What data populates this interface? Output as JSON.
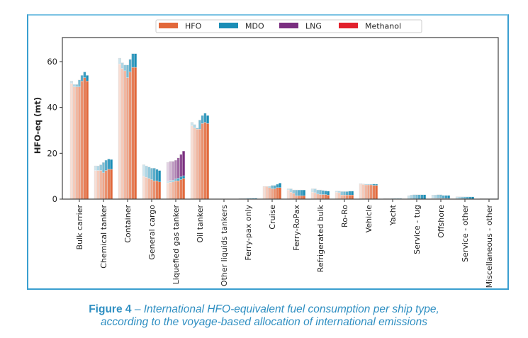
{
  "chart_data": {
    "type": "bar",
    "stacked": true,
    "grouped_by_year": true,
    "ylabel": "HFO-eq (mt)",
    "xlabel": "",
    "ylim": [
      0,
      70.5
    ],
    "yticks": [
      0,
      20,
      40,
      60
    ],
    "legend": {
      "placement": "top-center",
      "entries": [
        "HFO",
        "MDO",
        "LNG",
        "Methanol"
      ]
    },
    "colors": {
      "HFO": "#e2683a",
      "MDO": "#1a8db6",
      "LNG": "#7a2e80",
      "Methanol": "#e2202c"
    },
    "years_per_group": 7,
    "categories": [
      "Bulk carrier",
      "Chemical tanker",
      "Container",
      "General cargo",
      "Liquefied gas tanker",
      "Oil tanker",
      "Other liquids tankers",
      "Ferry-pax only",
      "Cruise",
      "Ferry-RoPax",
      "Refrigerated bulk",
      "Ro-Ro",
      "Vehicle",
      "Yacht",
      "Service - tug",
      "Offshore",
      "Service - other",
      "Miscellaneous - other"
    ],
    "series": [
      {
        "name": "HFO",
        "values": [
          [
            50.5,
            49,
            49,
            49,
            51.5,
            53,
            51.5
          ],
          [
            12.5,
            12.5,
            12.5,
            11.5,
            12.5,
            13,
            13
          ],
          [
            59,
            57,
            56,
            53,
            55.5,
            57.5,
            57.5
          ],
          [
            10,
            9.5,
            9,
            8.5,
            8,
            8,
            7.5
          ],
          [
            7,
            7.3,
            7.5,
            8,
            8,
            8.5,
            9
          ],
          [
            32,
            31,
            30.5,
            30.5,
            33,
            33.5,
            33
          ],
          [
            0.05,
            0.05,
            0.05,
            0.05,
            0.05,
            0.05,
            0.05
          ],
          [
            0,
            0,
            0,
            0,
            0,
            0,
            0
          ],
          [
            5.5,
            5.5,
            5,
            4.5,
            4.5,
            5,
            5
          ],
          [
            4,
            3,
            2.5,
            1.5,
            1.5,
            1.5,
            1.5
          ],
          [
            3,
            2.8,
            2.2,
            2,
            2,
            2,
            1.8
          ],
          [
            3,
            2.8,
            1.8,
            1.8,
            1.8,
            1.8,
            1.8
          ],
          [
            6.6,
            6.4,
            6.2,
            6.2,
            6.2,
            6,
            6
          ],
          [
            0,
            0,
            0,
            0,
            0,
            0,
            0
          ],
          [
            0.1,
            0.1,
            0.1,
            0.1,
            0.1,
            0.1,
            0.1
          ],
          [
            0.3,
            0.3,
            0.3,
            0.3,
            0.3,
            0.3,
            0.3
          ],
          [
            0.1,
            0.1,
            0.1,
            0.1,
            0.1,
            0.1,
            0.1
          ],
          [
            0.1,
            0.1,
            0.1,
            0.1,
            0.1,
            0.1,
            0.1
          ]
        ]
      },
      {
        "name": "MDO",
        "values": [
          [
            1,
            1,
            1,
            3,
            2.5,
            2.5,
            2.5
          ],
          [
            2,
            2,
            2.5,
            4.5,
            4.5,
            4.5,
            4.3
          ],
          [
            2.5,
            2.5,
            2.5,
            5.5,
            5.5,
            6,
            6
          ],
          [
            5,
            5,
            5,
            5,
            5.5,
            5,
            5
          ],
          [
            0.8,
            0.8,
            0.8,
            0.8,
            1.2,
            1.3,
            1.2
          ],
          [
            1.5,
            1.5,
            0.5,
            4,
            3.5,
            4,
            3.5
          ],
          [
            0.05,
            0.05,
            0.05,
            0.05,
            0.05,
            0.05,
            0.05
          ],
          [
            0.3,
            0.3,
            0.3,
            0.4,
            0.4,
            0.4,
            0.4
          ],
          [
            0,
            0,
            0.5,
            1.5,
            1.5,
            1.5,
            2
          ],
          [
            0.5,
            1.5,
            1.5,
            2.5,
            2.5,
            2.5,
            2.5
          ],
          [
            1.5,
            1.7,
            1.8,
            2,
            1.8,
            1.6,
            1.7
          ],
          [
            0.5,
            0.7,
            1.5,
            1.5,
            1.5,
            1.7,
            1.7
          ],
          [
            0.2,
            0.2,
            0.3,
            0.3,
            0.3,
            0.6,
            0.5
          ],
          [
            0.2,
            0.2,
            0.2,
            0.3,
            0.3,
            0.3,
            0.3
          ],
          [
            1.4,
            1.7,
            1.8,
            1.8,
            1.8,
            1.8,
            1.8
          ],
          [
            1.5,
            1.5,
            1.6,
            1.6,
            1.3,
            1.3,
            1.3
          ],
          [
            0.9,
            0.9,
            0.9,
            0.9,
            0.9,
            0.9,
            0.9
          ],
          [
            0.1,
            0.1,
            0.1,
            0.1,
            0.1,
            0.1,
            0.1
          ]
        ]
      },
      {
        "name": "LNG",
        "values": [
          [
            0,
            0,
            0,
            0,
            0,
            0,
            0
          ],
          [
            0,
            0,
            0,
            0,
            0,
            0,
            0
          ],
          [
            0,
            0,
            0,
            0,
            0,
            0,
            0
          ],
          [
            0,
            0,
            0,
            0,
            0,
            0,
            0
          ],
          [
            8.2,
            8.4,
            8.2,
            8.2,
            8.8,
            9.7,
            10.8
          ],
          [
            0,
            0,
            0,
            0,
            0,
            0,
            0
          ],
          [
            0,
            0,
            0,
            0,
            0,
            0,
            0
          ],
          [
            0,
            0,
            0,
            0,
            0,
            0,
            0
          ],
          [
            0,
            0,
            0,
            0,
            0,
            0,
            0
          ],
          [
            0,
            0,
            0,
            0,
            0,
            0,
            0
          ],
          [
            0,
            0,
            0,
            0,
            0,
            0,
            0
          ],
          [
            0,
            0,
            0,
            0,
            0,
            0,
            0
          ],
          [
            0,
            0,
            0,
            0,
            0,
            0,
            0
          ],
          [
            0,
            0,
            0,
            0,
            0,
            0,
            0
          ],
          [
            0,
            0,
            0,
            0,
            0,
            0,
            0
          ],
          [
            0,
            0,
            0,
            0,
            0,
            0,
            0
          ],
          [
            0,
            0,
            0,
            0,
            0,
            0,
            0
          ],
          [
            0,
            0,
            0,
            0,
            0,
            0,
            0
          ]
        ]
      },
      {
        "name": "Methanol",
        "values": [
          [
            0,
            0,
            0,
            0,
            0,
            0,
            0
          ],
          [
            0,
            0,
            0,
            0,
            0,
            0,
            0
          ],
          [
            0,
            0,
            0,
            0,
            0,
            0,
            0
          ],
          [
            0,
            0,
            0,
            0,
            0,
            0,
            0
          ],
          [
            0,
            0,
            0,
            0,
            0,
            0,
            0
          ],
          [
            0,
            0,
            0,
            0,
            0,
            0,
            0
          ],
          [
            0,
            0,
            0,
            0,
            0,
            0,
            0
          ],
          [
            0,
            0,
            0,
            0,
            0,
            0,
            0
          ],
          [
            0,
            0,
            0,
            0,
            0,
            0,
            0
          ],
          [
            0,
            0,
            0,
            0,
            0,
            0,
            0
          ],
          [
            0,
            0,
            0,
            0,
            0,
            0,
            0
          ],
          [
            0,
            0,
            0,
            0,
            0,
            0,
            0
          ],
          [
            0,
            0,
            0,
            0,
            0,
            0,
            0
          ],
          [
            0,
            0,
            0,
            0,
            0,
            0,
            0
          ],
          [
            0,
            0,
            0,
            0,
            0,
            0,
            0
          ],
          [
            0,
            0,
            0,
            0,
            0,
            0,
            0
          ],
          [
            0,
            0,
            0,
            0,
            0,
            0,
            0
          ],
          [
            0,
            0,
            0,
            0,
            0,
            0,
            0
          ]
        ]
      }
    ]
  },
  "caption": {
    "label": "Figure 4",
    "text_line1": " – International HFO-equivalent fuel consumption per ship type,",
    "text_line2": "according to the voyage-based allocation of international emissions"
  }
}
